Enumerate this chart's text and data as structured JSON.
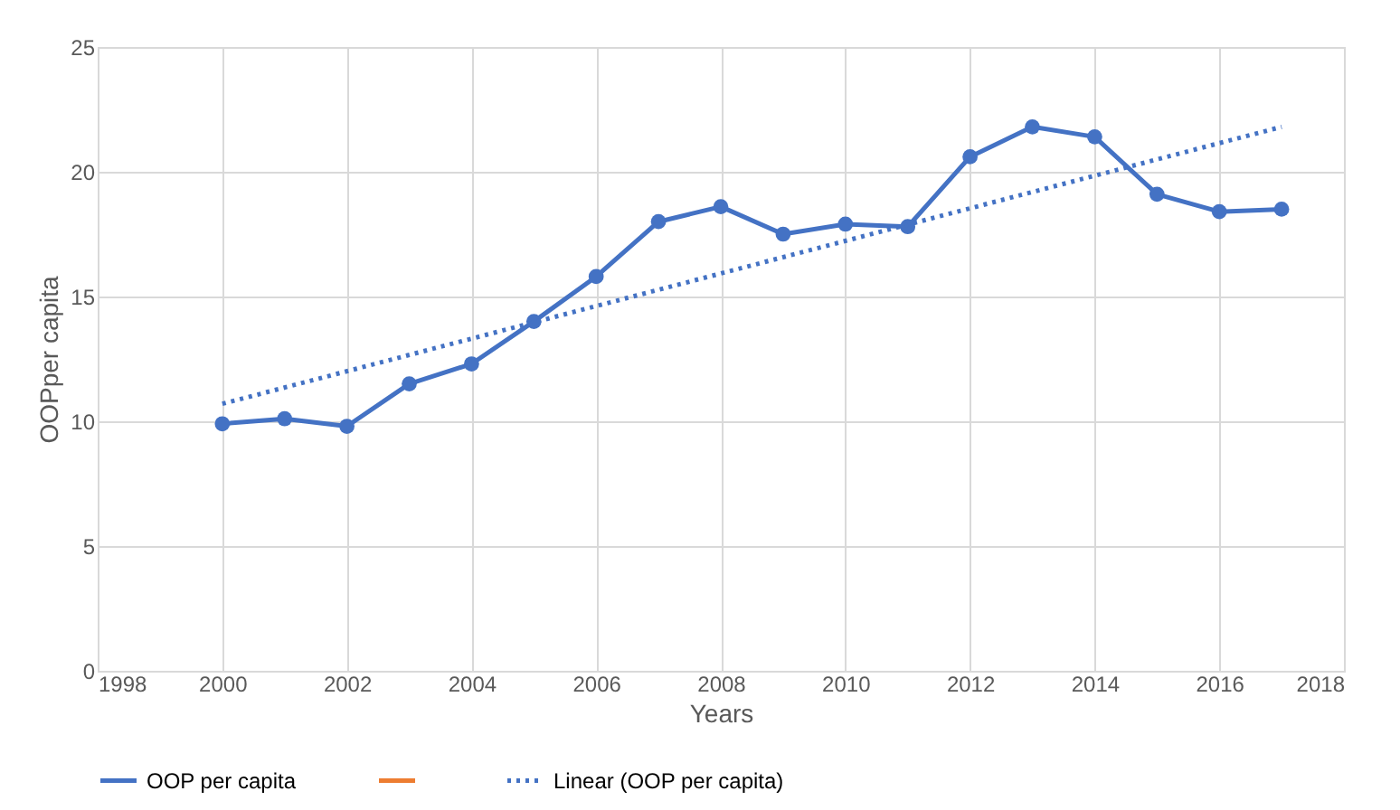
{
  "chart_data": {
    "type": "line",
    "xlabel": "Years",
    "ylabel": "OOPper capita",
    "x": [
      2000,
      2001,
      2002,
      2003,
      2004,
      2005,
      2006,
      2007,
      2008,
      2009,
      2010,
      2011,
      2012,
      2013,
      2014,
      2015,
      2016,
      2017
    ],
    "series": [
      {
        "name": "OOP per capita",
        "color": "#4472c4",
        "marker": "circle",
        "line_style": "solid",
        "values": [
          9.9,
          10.1,
          9.8,
          11.5,
          12.3,
          14.0,
          15.8,
          18.0,
          18.6,
          17.5,
          17.9,
          17.8,
          20.6,
          21.8,
          21.4,
          19.1,
          18.4,
          18.5
        ]
      },
      {
        "color": "#ed7d31",
        "marker": "circle",
        "line_style": "solid",
        "values": [
          null,
          null,
          null,
          null,
          null,
          null,
          null,
          null,
          null,
          null,
          null,
          null,
          null,
          null,
          null,
          null,
          null,
          null
        ]
      },
      {
        "name": "Linear (OOP per capita)",
        "type": "line",
        "color": "#4472c4",
        "marker": "none",
        "line_style": "dotted",
        "x": [
          2000,
          2017
        ],
        "values": [
          10.7,
          21.8
        ]
      }
    ],
    "xlim": [
      1998,
      2018
    ],
    "xticks": [
      1998,
      2000,
      2002,
      2004,
      2006,
      2008,
      2010,
      2012,
      2014,
      2016,
      2018
    ],
    "ylim": [
      0,
      25
    ],
    "yticks": [
      0,
      5,
      10,
      15,
      20,
      25
    ],
    "grid": true,
    "legend": "bottom"
  }
}
